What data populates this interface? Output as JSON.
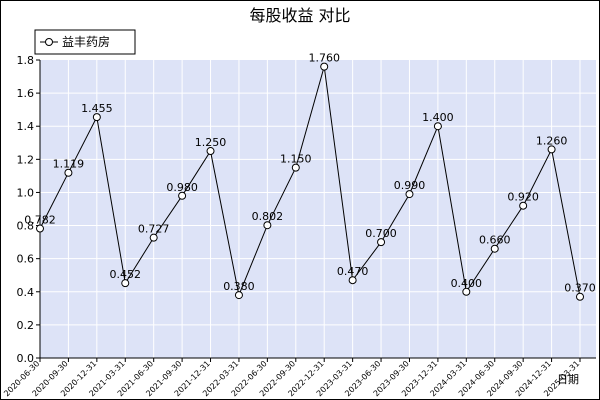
{
  "chart_data": {
    "type": "line",
    "title": "每股收益 对比",
    "xlabel": "日期",
    "ylabel": "",
    "ylim": [
      0,
      1.8
    ],
    "yticks": [
      "0.0",
      "0.2",
      "0.4",
      "0.6",
      "0.8",
      "1.0",
      "1.2",
      "1.4",
      "1.6",
      "1.8"
    ],
    "grid": true,
    "legend_position": "top-left",
    "categories": [
      "2020-06-30",
      "2020-09-30",
      "2020-12-31",
      "2021-03-31",
      "2021-06-30",
      "2021-09-30",
      "2021-12-31",
      "2022-03-31",
      "2022-06-30",
      "2022-09-30",
      "2022-12-31",
      "2023-03-31",
      "2023-06-30",
      "2023-09-30",
      "2023-12-31",
      "2024-03-31",
      "2024-06-30",
      "2024-09-30",
      "2024-12-31",
      "2025-03-31"
    ],
    "series": [
      {
        "name": "益丰药房",
        "values": [
          0.782,
          1.119,
          1.455,
          0.452,
          0.727,
          0.98,
          1.25,
          0.38,
          0.802,
          1.15,
          1.76,
          0.47,
          0.7,
          0.99,
          1.4,
          0.4,
          0.66,
          0.92,
          1.26,
          0.37
        ],
        "labels": [
          "0.782",
          "1.119",
          "1.455",
          "0.452",
          "0.727",
          "0.980",
          "1.250",
          "0.380",
          "0.802",
          "1.150",
          "1.760",
          "0.470",
          "0.700",
          "0.990",
          "1.400",
          "0.400",
          "0.660",
          "0.920",
          "1.260",
          "0.370"
        ]
      }
    ],
    "colors": {
      "plot_background": "#dde3f7",
      "grid": "#ffffff",
      "line": "#000000",
      "axis_label": "#0000cc"
    }
  }
}
